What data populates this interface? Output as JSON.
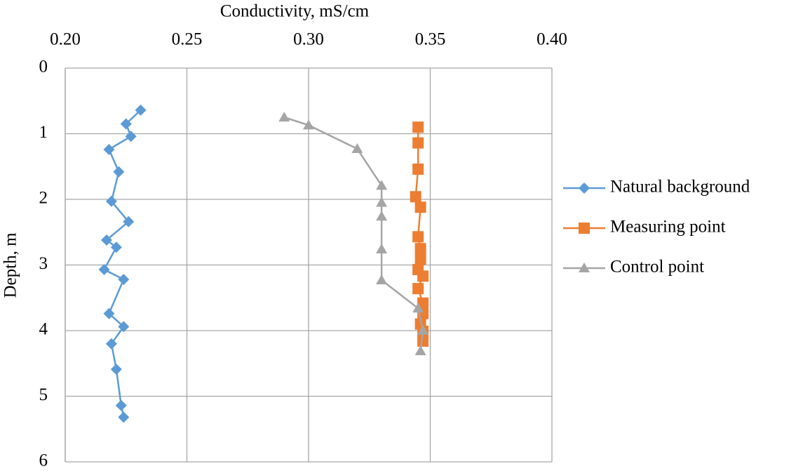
{
  "chart_data": {
    "type": "line",
    "x_label": "Conductivity, mS/cm",
    "y_label": "Depth, m",
    "x_axis_position": "top",
    "y_reversed": true,
    "grid": true,
    "legend": "right",
    "xlim": [
      0.2,
      0.4
    ],
    "xticks": [
      {
        "value": 0.2,
        "label": "0.20"
      },
      {
        "value": 0.25,
        "label": "0.25"
      },
      {
        "value": 0.3,
        "label": "0.30"
      },
      {
        "value": 0.35,
        "label": "0.35"
      },
      {
        "value": 0.4,
        "label": "0.40"
      }
    ],
    "ylim": [
      0,
      6
    ],
    "yticks": [
      0,
      1,
      2,
      3,
      4,
      5,
      6
    ],
    "series": [
      {
        "name": "Natural background",
        "color": "#5b9bd5",
        "marker": "diamond",
        "x": [
          0.231,
          0.225,
          0.227,
          0.218,
          0.222,
          0.219,
          0.226,
          0.217,
          0.221,
          0.216,
          0.224,
          0.218,
          0.224,
          0.219,
          0.221,
          0.223,
          0.224
        ],
        "values": [
          0.64,
          0.85,
          1.04,
          1.24,
          1.58,
          2.03,
          2.34,
          2.62,
          2.73,
          3.07,
          3.22,
          3.74,
          3.94,
          4.2,
          4.59,
          5.14,
          5.32
        ]
      },
      {
        "name": "Measuring point",
        "color": "#ed7d31",
        "marker": "square",
        "x": [
          0.345,
          0.345,
          0.345,
          0.344,
          0.346,
          0.345,
          0.346,
          0.346,
          0.345,
          0.347,
          0.345,
          0.347,
          0.347,
          0.346,
          0.347,
          0.347
        ],
        "values": [
          0.9,
          1.14,
          1.54,
          1.96,
          2.12,
          2.57,
          2.75,
          2.91,
          3.07,
          3.17,
          3.36,
          3.58,
          3.74,
          3.9,
          4.01,
          4.16
        ]
      },
      {
        "name": "Control point",
        "color": "#a5a5a5",
        "marker": "triangle",
        "x": [
          0.29,
          0.3,
          0.32,
          0.33,
          0.33,
          0.33,
          0.33,
          0.33,
          0.345,
          0.347,
          0.346
        ],
        "values": [
          0.75,
          0.87,
          1.23,
          1.79,
          2.05,
          2.26,
          2.76,
          3.23,
          3.66,
          4.0,
          4.31
        ]
      }
    ]
  }
}
